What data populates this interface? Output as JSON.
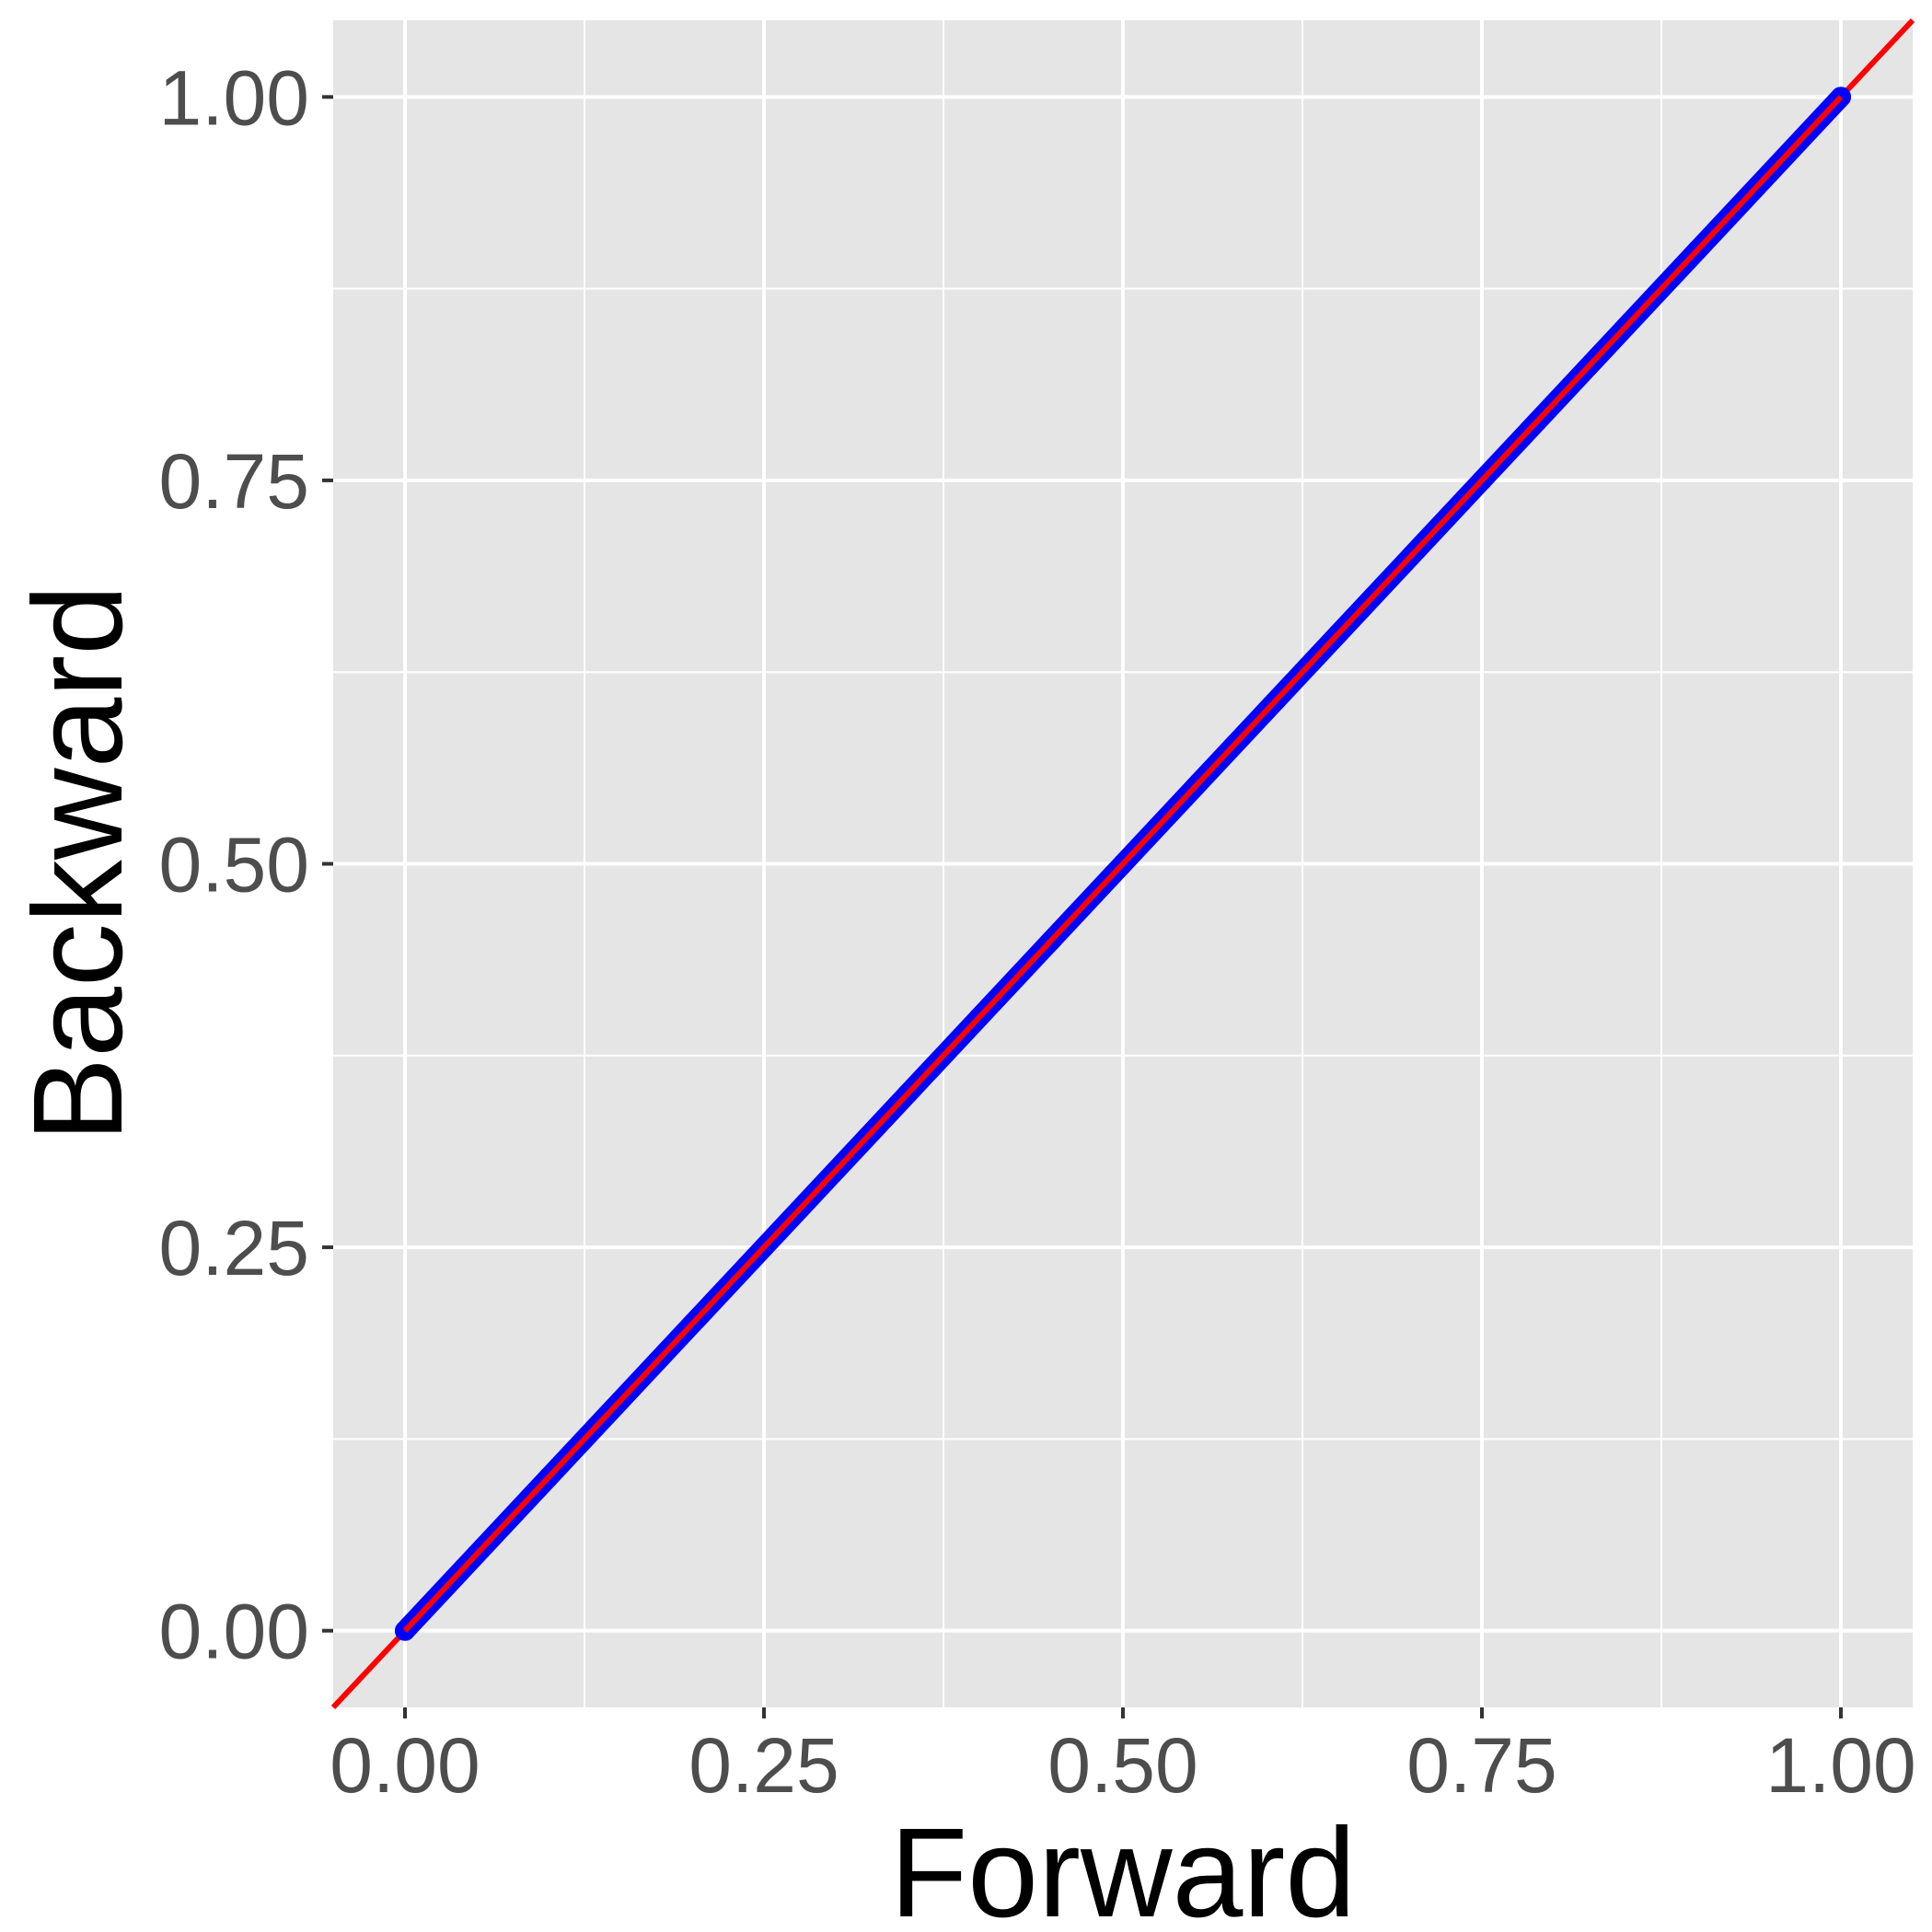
{
  "chart_data": {
    "type": "scatter",
    "xlabel": "Forward",
    "ylabel": "Backward",
    "xlim": [
      -0.05,
      1.05
    ],
    "ylim": [
      -0.05,
      1.05
    ],
    "x_ticks": [
      "0.00",
      "0.25",
      "0.50",
      "0.75",
      "1.00"
    ],
    "y_ticks": [
      "0.00",
      "0.25",
      "0.50",
      "0.75",
      "1.00"
    ],
    "grid": true,
    "reference_line": {
      "slope": 1,
      "intercept": 0,
      "color": "#ff0000"
    },
    "series": [
      {
        "color": "#0000ff",
        "x": [
          0.0,
          0.05,
          0.1,
          0.15,
          0.2,
          0.25,
          0.3,
          0.35,
          0.4,
          0.45,
          0.5,
          0.55,
          0.6,
          0.65,
          0.7,
          0.75,
          0.8,
          0.85,
          0.9,
          0.95,
          1.0
        ],
        "y": [
          0.0,
          0.05,
          0.1,
          0.15,
          0.2,
          0.25,
          0.3,
          0.35,
          0.4,
          0.45,
          0.5,
          0.55,
          0.6,
          0.65,
          0.7,
          0.75,
          0.8,
          0.85,
          0.9,
          0.95,
          1.0
        ]
      }
    ]
  }
}
